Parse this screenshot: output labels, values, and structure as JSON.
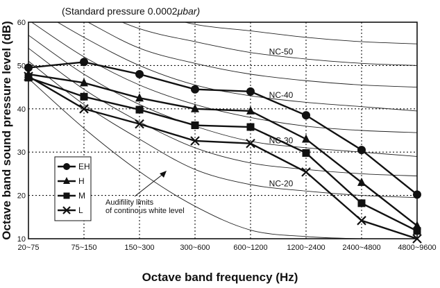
{
  "chart_data": {
    "type": "line",
    "ylabel": "Octave band sound pressure level (dB)",
    "xlabel": "Octave band frequency (Hz)",
    "reference_note": "(Standard pressure  0.0002",
    "reference_unit": "μbar)",
    "categories": [
      "20~75",
      "75~150",
      "150~300",
      "300~600",
      "600~1200",
      "1200~2400",
      "2400~4800",
      "4800~9600"
    ],
    "ylim": [
      10,
      60
    ],
    "yticks": [
      10,
      20,
      30,
      40,
      50,
      60
    ],
    "grid": true,
    "series": [
      {
        "name": "EH",
        "marker": "circle",
        "values": [
          49.5,
          50.8,
          48.0,
          44.5,
          44.0,
          38.5,
          30.5,
          20.2
        ]
      },
      {
        "name": "H",
        "marker": "triangle",
        "values": [
          48.0,
          46.0,
          42.5,
          40.0,
          39.5,
          33.0,
          23.0,
          13.0
        ]
      },
      {
        "name": "M",
        "marker": "square",
        "values": [
          47.2,
          42.8,
          39.8,
          36.2,
          35.8,
          29.8,
          18.2,
          11.8
        ]
      },
      {
        "name": "L",
        "marker": "x",
        "values": [
          47.5,
          40.0,
          36.5,
          32.6,
          32.0,
          25.4,
          14.2,
          10.0
        ]
      }
    ],
    "nc_curves": [
      {
        "label": "NC-50",
        "values": [
          71.0,
          64.0,
          58.5,
          55.5,
          53.0,
          51.5,
          50.5,
          50.0
        ]
      },
      {
        "label": "NC-40",
        "values": [
          64.0,
          56.5,
          50.0,
          45.5,
          43.0,
          41.5,
          40.5,
          39.5
        ]
      },
      {
        "label": "NC-30",
        "values": [
          57.0,
          48.0,
          41.0,
          36.0,
          32.5,
          31.0,
          30.0,
          29.0
        ]
      },
      {
        "label": "NC-20",
        "values": [
          51.0,
          41.0,
          33.0,
          26.0,
          22.5,
          21.0,
          20.0,
          19.5
        ]
      }
    ],
    "extra_curves": [
      {
        "values": [
          75.0,
          68.0,
          63.0,
          59.5,
          58.0,
          56.5,
          55.5,
          55.0
        ]
      },
      {
        "values": [
          67.5,
          60.5,
          54.0,
          50.5,
          48.0,
          46.5,
          45.5,
          45.0
        ]
      },
      {
        "values": [
          60.5,
          52.0,
          45.5,
          41.0,
          38.0,
          36.0,
          35.0,
          34.5
        ]
      },
      {
        "values": [
          54.0,
          44.5,
          37.0,
          31.0,
          27.5,
          26.0,
          25.0,
          24.5
        ]
      }
    ],
    "audibility_curve": {
      "annotation": [
        "Audifility limits",
        "of continous white level"
      ],
      "values": [
        47.0,
        35.5,
        25.5,
        17.5,
        12.0,
        10.5,
        10.0,
        10.0
      ]
    },
    "legend_position": "bottom-left"
  }
}
